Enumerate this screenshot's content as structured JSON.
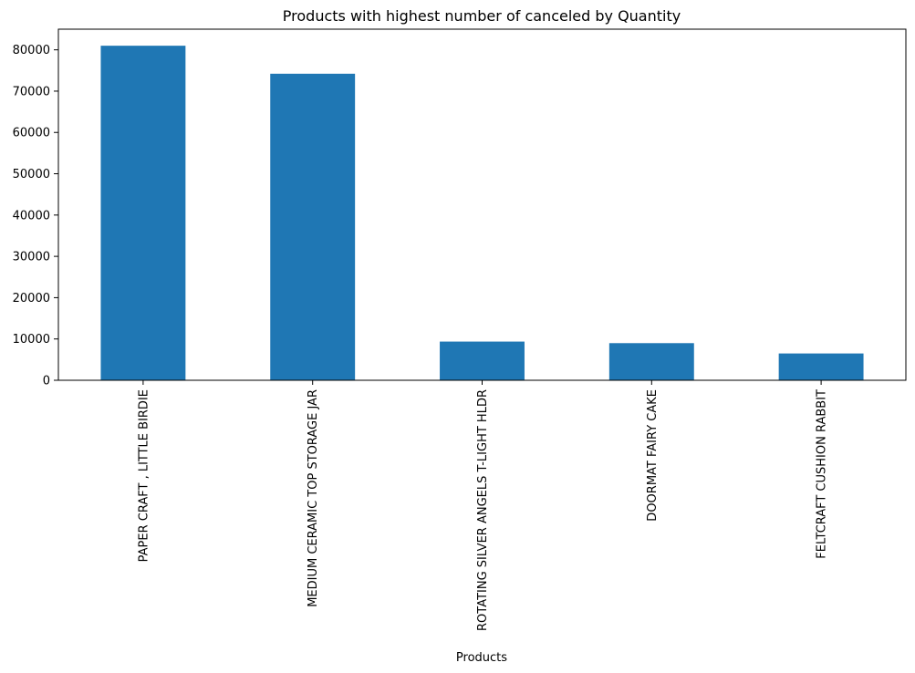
{
  "chart_data": {
    "type": "bar",
    "title": "Products with highest number of canceled by Quantity",
    "xlabel": "Products",
    "ylabel": "",
    "categories": [
      "PAPER CRAFT , LITTLE BIRDIE",
      "MEDIUM CERAMIC TOP STORAGE JAR",
      "ROTATING SILVER ANGELS T-LIGHT HLDR",
      "DOORMAT FAIRY CAKE",
      "FELTCRAFT CUSHION RABBIT"
    ],
    "values": [
      80995,
      74215,
      9367,
      8990,
      6490
    ],
    "ylim": [
      0,
      85000
    ],
    "yticks": [
      0,
      10000,
      20000,
      30000,
      40000,
      50000,
      60000,
      70000,
      80000
    ],
    "grid": false,
    "legend": "none",
    "bar_color": "#1f77b4"
  }
}
